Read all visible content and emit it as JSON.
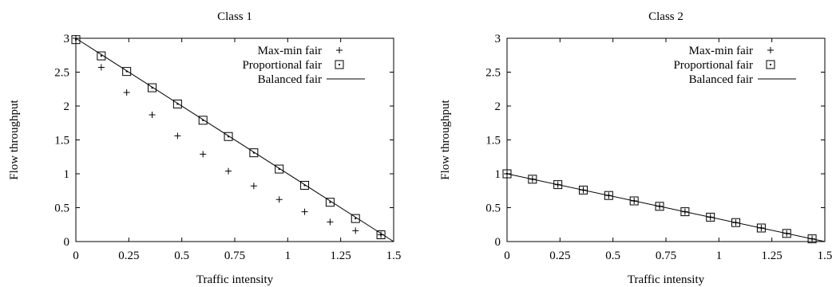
{
  "chart_data": [
    {
      "type": "scatter",
      "title": "Class 1",
      "xlabel": "Traffic intensity",
      "ylabel": "Flow throughput",
      "xlim": [
        0,
        1.5
      ],
      "ylim": [
        0,
        3
      ],
      "xticks": [
        "0",
        "0.25",
        "0.5",
        "0.75",
        "1",
        "1.25",
        "1.5"
      ],
      "yticks": [
        "0",
        "0.5",
        "1",
        "1.5",
        "2",
        "2.5",
        "3"
      ],
      "legend_position": "top-right",
      "series": [
        {
          "name": "Max-min fair",
          "style": "plus",
          "x": [
            0,
            0.12,
            0.24,
            0.36,
            0.48,
            0.6,
            0.72,
            0.84,
            0.96,
            1.08,
            1.2,
            1.32,
            1.44
          ],
          "y": [
            3.0,
            2.57,
            2.2,
            1.87,
            1.56,
            1.29,
            1.04,
            0.82,
            0.62,
            0.44,
            0.29,
            0.16,
            0.1
          ]
        },
        {
          "name": "Proportional fair",
          "style": "square",
          "x": [
            0,
            0.12,
            0.24,
            0.36,
            0.48,
            0.6,
            0.72,
            0.84,
            0.96,
            1.08,
            1.2,
            1.32,
            1.44
          ],
          "y": [
            2.98,
            2.74,
            2.51,
            2.27,
            2.03,
            1.79,
            1.55,
            1.31,
            1.07,
            0.83,
            0.58,
            0.34,
            0.1
          ]
        },
        {
          "name": "Balanced fair",
          "style": "line",
          "x": [
            0,
            1.5
          ],
          "y": [
            3.0,
            0
          ]
        }
      ]
    },
    {
      "type": "scatter",
      "title": "Class 2",
      "xlabel": "Traffic intensity",
      "ylabel": "Flow throughput",
      "xlim": [
        0,
        1.5
      ],
      "ylim": [
        0,
        3
      ],
      "xticks": [
        "0",
        "0.25",
        "0.5",
        "0.75",
        "1",
        "1.25",
        "1.5"
      ],
      "yticks": [
        "0",
        "0.5",
        "1",
        "1.5",
        "2",
        "2.5",
        "3"
      ],
      "legend_position": "top-right",
      "series": [
        {
          "name": "Max-min fair",
          "style": "plus",
          "x": [
            0,
            0.12,
            0.24,
            0.36,
            0.48,
            0.6,
            0.72,
            0.84,
            0.96,
            1.08,
            1.2,
            1.32,
            1.44
          ],
          "y": [
            1.0,
            0.92,
            0.84,
            0.76,
            0.68,
            0.6,
            0.52,
            0.44,
            0.36,
            0.28,
            0.2,
            0.12,
            0.04
          ]
        },
        {
          "name": "Proportional fair",
          "style": "square",
          "x": [
            0,
            0.12,
            0.24,
            0.36,
            0.48,
            0.6,
            0.72,
            0.84,
            0.96,
            1.08,
            1.2,
            1.32,
            1.44
          ],
          "y": [
            1.0,
            0.92,
            0.84,
            0.76,
            0.68,
            0.6,
            0.52,
            0.44,
            0.36,
            0.28,
            0.2,
            0.12,
            0.04
          ]
        },
        {
          "name": "Balanced fair",
          "style": "line",
          "x": [
            0,
            1.5
          ],
          "y": [
            1.0,
            0
          ]
        }
      ]
    }
  ]
}
